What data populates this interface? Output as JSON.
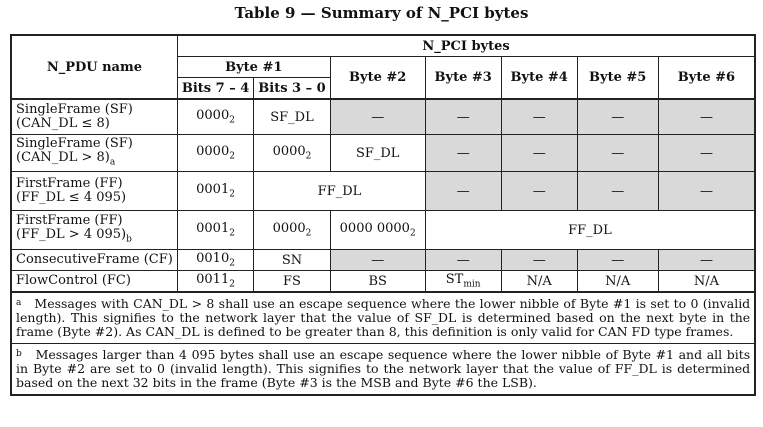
{
  "title": "Table 9 — Summary of N_PCI bytes",
  "header": {
    "npdu_name": "N_PDU name",
    "npci_bytes": "N_PCI bytes",
    "byte1": "Byte #1",
    "bits74": "Bits 7 – 4",
    "bits30": "Bits 3 – 0",
    "byte2": "Byte #2",
    "byte3": "Byte #3",
    "byte4": "Byte #4",
    "byte5": "Byte #5",
    "byte6": "Byte #6"
  },
  "rows": {
    "sf1": {
      "name1": "SingleFrame (SF)",
      "name2": "(CAN_DL ≤ 8)",
      "b74": "0000",
      "b74sub": "2",
      "b30": "SF_DL",
      "dash": "—"
    },
    "sf2": {
      "name1": "SingleFrame (SF)",
      "name2": "(CAN_DL > 8)",
      "name2sup": "a",
      "b74": "0000",
      "b74sub": "2",
      "b30": "0000",
      "b30sub": "2",
      "b2": "SF_DL",
      "dash": "—"
    },
    "ff1": {
      "name1": "FirstFrame (FF)",
      "name2": "(FF_DL ≤ 4 095)",
      "b74": "0001",
      "b74sub": "2",
      "span": "FF_DL",
      "dash": "—"
    },
    "ff2": {
      "name1": "FirstFrame (FF)",
      "name2": "(FF_DL > 4 095)",
      "name2sup": "b",
      "b74": "0001",
      "b74sub": "2",
      "b30": "0000",
      "b30sub": "2",
      "b2": "0000 0000",
      "b2sub": "2",
      "span": "FF_DL"
    },
    "cf": {
      "name": "ConsecutiveFrame (CF)",
      "b74": "0010",
      "b74sub": "2",
      "b30": "SN",
      "dash": "—"
    },
    "fc": {
      "name": "FlowControl (FC)",
      "b74": "0011",
      "b74sub": "2",
      "b30": "FS",
      "b2": "BS",
      "b3": "ST",
      "b3sub": "min",
      "b4": "N/A",
      "b5": "N/A",
      "b6": "N/A"
    }
  },
  "notes": {
    "a_mark": "a",
    "a_text": "Messages with CAN_DL > 8 shall use an escape sequence where the lower nibble of Byte #1 is set to 0 (invalid length). This signifies to the network layer that the value of SF_DL is determined based on the next byte in the frame (Byte #2). As CAN_DL is defined to be greater than 8, this definition is only valid for CAN FD type frames.",
    "b_mark": "b",
    "b_text": "Messages larger than 4 095 bytes shall use an escape sequence where the lower nibble of Byte #1 and all bits in Byte #2 are set to 0 (invalid length). This signifies to the network layer that the value of FF_DL is determined based on the next 32 bits in the frame (Byte #3 is the MSB and Byte #6 the LSB)."
  }
}
